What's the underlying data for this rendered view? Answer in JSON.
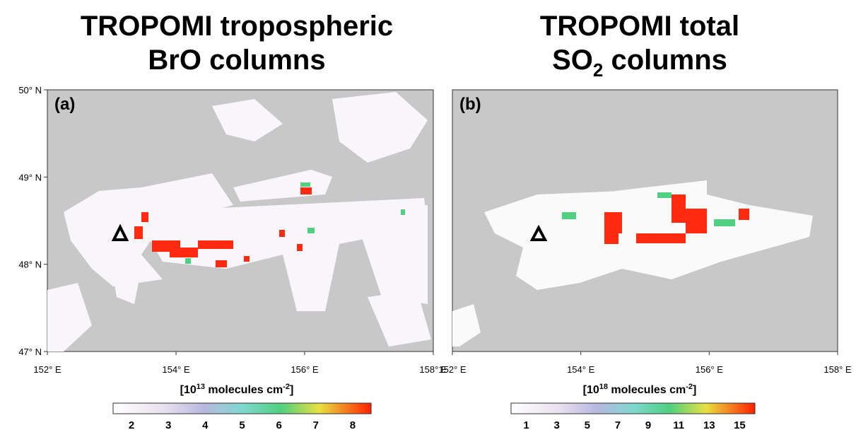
{
  "panels": [
    {
      "title": [
        "TROPOMI tropospheric",
        "BrO columns"
      ],
      "label": "(a)",
      "x_ticks": [
        "152° E",
        "154° E",
        "156° E",
        "158° E"
      ],
      "y_ticks": [
        "50° N",
        "49° N",
        "48° N",
        "47° N"
      ],
      "unit": [
        "[10",
        "13",
        " molecules cm",
        "-2",
        "]"
      ],
      "colorbar_ticks": [
        "2",
        "3",
        "4",
        "5",
        "6",
        "7",
        "8"
      ]
    },
    {
      "title": [
        "TROPOMI total",
        "SO",
        "2",
        " columns"
      ],
      "label": "(b)",
      "x_ticks": [
        "152° E",
        "154° E",
        "156° E",
        "158° E"
      ],
      "unit": [
        "[10",
        "18",
        " molecules cm",
        "-2",
        "]"
      ],
      "colorbar_ticks": [
        "1",
        "3",
        "5",
        "7",
        "9",
        "11",
        "13",
        "15"
      ]
    }
  ]
}
